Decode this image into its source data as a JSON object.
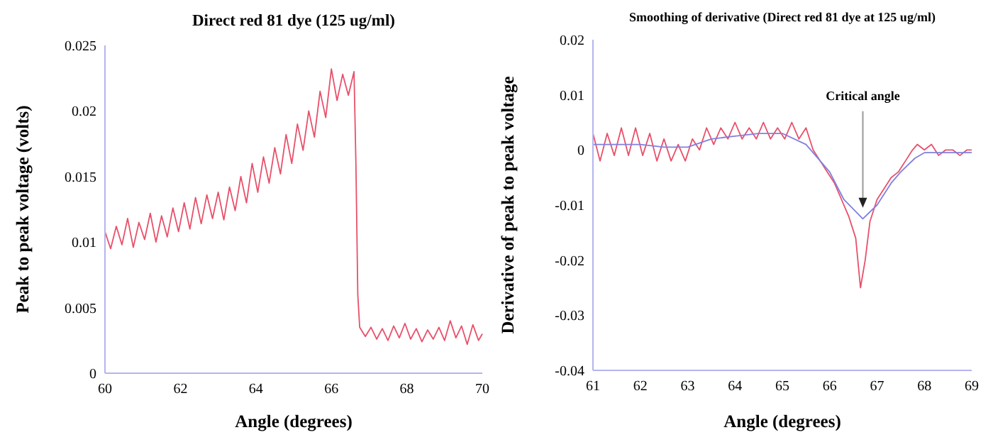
{
  "chart_data": [
    {
      "type": "line",
      "title": "Direct red 81 dye (125 ug/ml)",
      "xlabel": "Angle (degrees)",
      "ylabel": "Peak to peak voltage (volts)",
      "xlim": [
        60,
        70
      ],
      "xticks": [
        60,
        62,
        64,
        66,
        68,
        70
      ],
      "ylim": [
        0,
        0.025
      ],
      "yticks": [
        0,
        0.005,
        0.01,
        0.015,
        0.02,
        0.025
      ],
      "grid": false,
      "marker": "none",
      "line_style": "solid",
      "series": [
        {
          "color": "#e8506a",
          "x": [
            60,
            60.15,
            60.3,
            60.45,
            60.6,
            60.75,
            60.9,
            61.05,
            61.2,
            61.35,
            61.5,
            61.65,
            61.8,
            61.95,
            62.1,
            62.25,
            62.4,
            62.55,
            62.7,
            62.85,
            63,
            63.15,
            63.3,
            63.45,
            63.6,
            63.75,
            63.9,
            64.05,
            64.2,
            64.35,
            64.5,
            64.65,
            64.8,
            64.95,
            65.1,
            65.25,
            65.4,
            65.55,
            65.7,
            65.85,
            66,
            66.15,
            66.3,
            66.45,
            66.6,
            66.65,
            66.7,
            66.75,
            66.9,
            67.05,
            67.2,
            67.35,
            67.5,
            67.65,
            67.8,
            67.95,
            68.1,
            68.25,
            68.4,
            68.55,
            68.7,
            68.85,
            69,
            69.15,
            69.3,
            69.45,
            69.6,
            69.75,
            69.9,
            70
          ],
          "values": [
            0.0108,
            0.0095,
            0.0112,
            0.0098,
            0.0118,
            0.0096,
            0.0115,
            0.0102,
            0.0122,
            0.01,
            0.012,
            0.0104,
            0.0126,
            0.0108,
            0.013,
            0.011,
            0.0134,
            0.0114,
            0.0136,
            0.0118,
            0.0138,
            0.0117,
            0.0142,
            0.0124,
            0.015,
            0.013,
            0.016,
            0.0138,
            0.0165,
            0.0145,
            0.0172,
            0.0152,
            0.0182,
            0.016,
            0.019,
            0.017,
            0.02,
            0.018,
            0.0215,
            0.0195,
            0.0232,
            0.0208,
            0.0228,
            0.0212,
            0.023,
            0.016,
            0.006,
            0.0035,
            0.0028,
            0.0035,
            0.0026,
            0.0034,
            0.0025,
            0.0036,
            0.0027,
            0.0038,
            0.0026,
            0.0034,
            0.0024,
            0.0033,
            0.0026,
            0.0035,
            0.0025,
            0.004,
            0.0027,
            0.0036,
            0.0022,
            0.0037,
            0.0025,
            0.003
          ]
        }
      ]
    },
    {
      "type": "line",
      "title": "Smoothing of derivative (Direct red 81 dye at 125 ug/ml)",
      "xlabel": "Angle (degrees)",
      "ylabel": "Derivative of peak to peak voltage",
      "xlim": [
        61,
        69
      ],
      "xticks": [
        61,
        62,
        63,
        64,
        65,
        66,
        67,
        68,
        69
      ],
      "ylim": [
        -0.04,
        0.02
      ],
      "yticks": [
        -0.04,
        -0.03,
        -0.02,
        -0.01,
        0,
        0.01,
        0.02
      ],
      "grid": false,
      "marker": "none",
      "line_style": "solid",
      "annotations": [
        {
          "text": "Critical angle",
          "x": 66.7,
          "y": -0.011
        }
      ],
      "series": [
        {
          "color": "#e8506a",
          "x": [
            61,
            61.15,
            61.3,
            61.45,
            61.6,
            61.75,
            61.9,
            62.05,
            62.2,
            62.35,
            62.5,
            62.65,
            62.8,
            62.95,
            63.1,
            63.25,
            63.4,
            63.55,
            63.7,
            63.85,
            64,
            64.15,
            64.3,
            64.45,
            64.6,
            64.75,
            64.9,
            65.05,
            65.2,
            65.35,
            65.5,
            65.65,
            65.8,
            65.95,
            66.1,
            66.25,
            66.4,
            66.55,
            66.65,
            66.75,
            66.85,
            67,
            67.15,
            67.3,
            67.45,
            67.6,
            67.75,
            67.85,
            68,
            68.15,
            68.3,
            68.45,
            68.6,
            68.75,
            68.9,
            69
          ],
          "values": [
            0.003,
            -0.002,
            0.003,
            -0.001,
            0.004,
            -0.001,
            0.004,
            -0.001,
            0.003,
            -0.002,
            0.002,
            -0.002,
            0.001,
            -0.002,
            0.002,
            0,
            0.004,
            0.001,
            0.004,
            0.002,
            0.005,
            0.002,
            0.004,
            0.002,
            0.005,
            0.002,
            0.004,
            0.002,
            0.005,
            0.002,
            0.004,
            0,
            -0.002,
            -0.004,
            -0.006,
            -0.009,
            -0.012,
            -0.016,
            -0.025,
            -0.02,
            -0.013,
            -0.009,
            -0.007,
            -0.005,
            -0.004,
            -0.002,
            0,
            0.001,
            0,
            0.001,
            -0.001,
            0,
            0,
            -0.001,
            0,
            0
          ]
        },
        {
          "color": "#8080e0",
          "x": [
            61,
            61.5,
            62,
            62.5,
            63,
            63.5,
            64,
            64.5,
            65,
            65.5,
            65.8,
            66,
            66.3,
            66.7,
            67,
            67.3,
            67.5,
            67.8,
            68,
            68.5,
            69
          ],
          "values": [
            0.001,
            0.001,
            0.001,
            0.0005,
            0.0005,
            0.002,
            0.0025,
            0.003,
            0.003,
            0.001,
            -0.002,
            -0.004,
            -0.009,
            -0.0125,
            -0.01,
            -0.006,
            -0.004,
            -0.0015,
            -0.0005,
            -0.0005,
            -0.0005
          ]
        }
      ]
    }
  ]
}
